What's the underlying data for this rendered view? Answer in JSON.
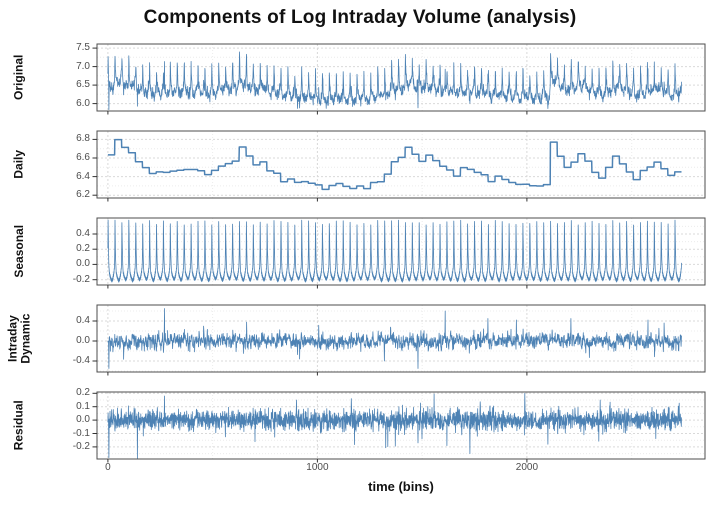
{
  "chart_data": {
    "type": "line",
    "title": "Components of Log Intraday Volume (analysis)",
    "xlabel": "time (bins)",
    "x_tick_values": [
      0,
      1000,
      2000
    ],
    "x_tick_labels": [
      "0",
      "1000",
      "2000"
    ],
    "x_minor_ticks": [
      500,
      1500,
      2500
    ],
    "xlim": [
      -52,
      2850
    ],
    "n_bins": 2739,
    "bins_per_day": 33,
    "grid": true,
    "legend_position": "none",
    "facet_label_position": "left",
    "line_color": "#4d82b4",
    "panel_border_color": "#4d4d4d",
    "grid_major_color": "#d9d9d9",
    "grid_minor_color": "#ececec",
    "tick_color": "#333333",
    "tick_label_color": "#4d4d4d",
    "seed": 20170917,
    "panels": [
      {
        "name": "Original",
        "ylim": [
          5.8,
          7.61
        ],
        "ytick_values": [
          7.5,
          7.0,
          6.5,
          6.0
        ],
        "ytick_labels": [
          "7.5",
          "7.0",
          "6.5",
          "6.0"
        ]
      },
      {
        "name": "Daily",
        "ylim": [
          6.17,
          6.89
        ],
        "ytick_values": [
          6.8,
          6.6,
          6.4,
          6.2
        ],
        "ytick_labels": [
          "6.8",
          "6.6",
          "6.4",
          "6.2"
        ]
      },
      {
        "name": "Seasonal",
        "ylim": [
          -0.27,
          0.61
        ],
        "ytick_values": [
          0.4,
          0.2,
          0.0,
          -0.2
        ],
        "ytick_labels": [
          "0.4",
          "0.2",
          "0.0",
          "-0.2"
        ]
      },
      {
        "name": "Intraday Dynamic",
        "ylim": [
          -0.62,
          0.72
        ],
        "ytick_values": [
          0.4,
          0.0,
          -0.4
        ],
        "ytick_labels": [
          "0.4",
          "0.0",
          "-0.4"
        ]
      },
      {
        "name": "Residual",
        "ylim": [
          -0.29,
          0.21
        ],
        "ytick_values": [
          0.2,
          0.1,
          0.0,
          -0.1,
          -0.2
        ],
        "ytick_labels": [
          "0.2",
          "0.1",
          "0.0",
          "-0.1",
          "-0.2"
        ]
      }
    ],
    "daily_anchors": [
      [
        0,
        6.62
      ],
      [
        1,
        6.78
      ],
      [
        2,
        6.73
      ],
      [
        3,
        6.65
      ],
      [
        4,
        6.55
      ],
      [
        6,
        6.45
      ],
      [
        8,
        6.44
      ],
      [
        10,
        6.47
      ],
      [
        12,
        6.48
      ],
      [
        14,
        6.43
      ],
      [
        16,
        6.5
      ],
      [
        18,
        6.56
      ],
      [
        19,
        6.7
      ],
      [
        20,
        6.63
      ],
      [
        21,
        6.53
      ],
      [
        22,
        6.55
      ],
      [
        23,
        6.48
      ],
      [
        25,
        6.36
      ],
      [
        27,
        6.35
      ],
      [
        29,
        6.33
      ],
      [
        31,
        6.28
      ],
      [
        33,
        6.32
      ],
      [
        35,
        6.28
      ],
      [
        37,
        6.28
      ],
      [
        39,
        6.36
      ],
      [
        40,
        6.43
      ],
      [
        41,
        6.55
      ],
      [
        42,
        6.62
      ],
      [
        43,
        6.7
      ],
      [
        44,
        6.62
      ],
      [
        45,
        6.55
      ],
      [
        46,
        6.65
      ],
      [
        47,
        6.58
      ],
      [
        49,
        6.48
      ],
      [
        50,
        6.42
      ],
      [
        51,
        6.5
      ],
      [
        53,
        6.44
      ],
      [
        55,
        6.36
      ],
      [
        56,
        6.42
      ],
      [
        58,
        6.32
      ],
      [
        60,
        6.3
      ],
      [
        62,
        6.28
      ],
      [
        63,
        6.3
      ],
      [
        64,
        6.78
      ],
      [
        65,
        6.62
      ],
      [
        66,
        6.5
      ],
      [
        67,
        6.55
      ],
      [
        68,
        6.65
      ],
      [
        69,
        6.55
      ],
      [
        70,
        6.45
      ],
      [
        71,
        6.4
      ],
      [
        72,
        6.5
      ],
      [
        73,
        6.62
      ],
      [
        74,
        6.55
      ],
      [
        75,
        6.45
      ],
      [
        76,
        6.38
      ],
      [
        77,
        6.45
      ],
      [
        78,
        6.52
      ],
      [
        79,
        6.56
      ],
      [
        80,
        6.48
      ],
      [
        81,
        6.42
      ],
      [
        82,
        6.45
      ]
    ],
    "daily_range": [
      6.22,
      6.8
    ],
    "seasonal_profile": [
      0.2,
      0.55,
      0.38,
      0.18,
      0.06,
      -0.02,
      -0.07,
      -0.12,
      -0.1,
      -0.15,
      -0.12,
      -0.17,
      -0.14,
      -0.18,
      -0.16,
      -0.2,
      -0.17,
      -0.21,
      -0.18,
      -0.22,
      -0.19,
      -0.21,
      -0.17,
      -0.2,
      -0.15,
      -0.18,
      -0.12,
      -0.15,
      -0.09,
      -0.11,
      -0.05,
      -0.06,
      0.02
    ],
    "intraday_dynamic": {
      "ar": 0.5,
      "sd": 0.07,
      "spikes": [
        [
          5,
          -0.55
        ],
        [
          270,
          0.65
        ],
        [
          1320,
          -0.4
        ],
        [
          1480,
          -0.55
        ],
        [
          1610,
          0.6
        ],
        [
          1814,
          0.45
        ],
        [
          1950,
          0.42
        ],
        [
          2210,
          0.45
        ],
        [
          2578,
          0.42
        ]
      ]
    },
    "residual": {
      "sd": 0.038,
      "spikes": [
        [
          5,
          -0.28
        ],
        [
          270,
          0.18
        ],
        [
          900,
          0.15
        ],
        [
          1480,
          -0.17
        ],
        [
          1728,
          -0.25
        ],
        [
          1990,
          0.2
        ],
        [
          2100,
          -0.18
        ],
        [
          2350,
          0.15
        ]
      ]
    }
  }
}
